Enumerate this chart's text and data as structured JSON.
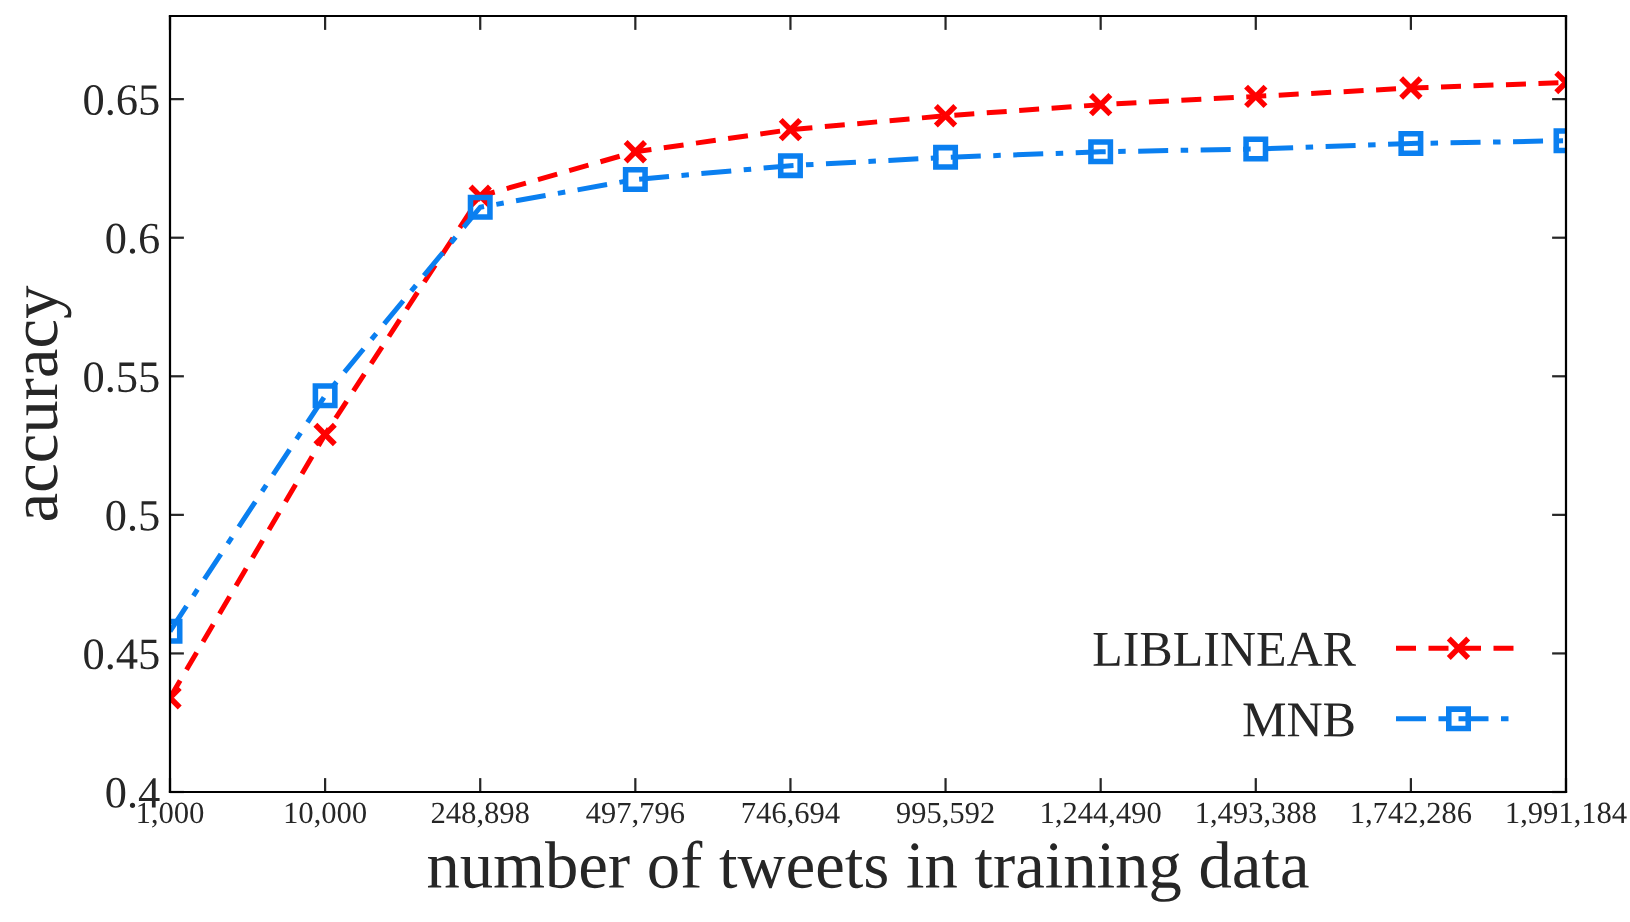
{
  "chart_data": {
    "type": "line",
    "xlabel": "number of tweets in training data",
    "ylabel": "accuracy",
    "categories": [
      "1,000",
      "10,000",
      "248,898",
      "497,796",
      "746,694",
      "995,592",
      "1,244,490",
      "1,493,388",
      "1,742,286",
      "1,991,184"
    ],
    "series": [
      {
        "name": "LIBLINEAR",
        "color": "#ff0000",
        "marker": "cross",
        "line_style": "dashed",
        "values": [
          0.434,
          0.529,
          0.615,
          0.631,
          0.639,
          0.644,
          0.648,
          0.651,
          0.654,
          0.656
        ]
      },
      {
        "name": "MNB",
        "color": "#0a7ff0",
        "marker": "square",
        "line_style": "dashdot",
        "values": [
          0.458,
          0.543,
          0.611,
          0.621,
          0.626,
          0.629,
          0.631,
          0.632,
          0.634,
          0.635
        ]
      }
    ],
    "ylim": [
      0.4,
      0.68
    ],
    "yticks": [
      0.4,
      0.45,
      0.5,
      0.55,
      0.6,
      0.65
    ],
    "grid": false,
    "legend": "bottom right"
  }
}
